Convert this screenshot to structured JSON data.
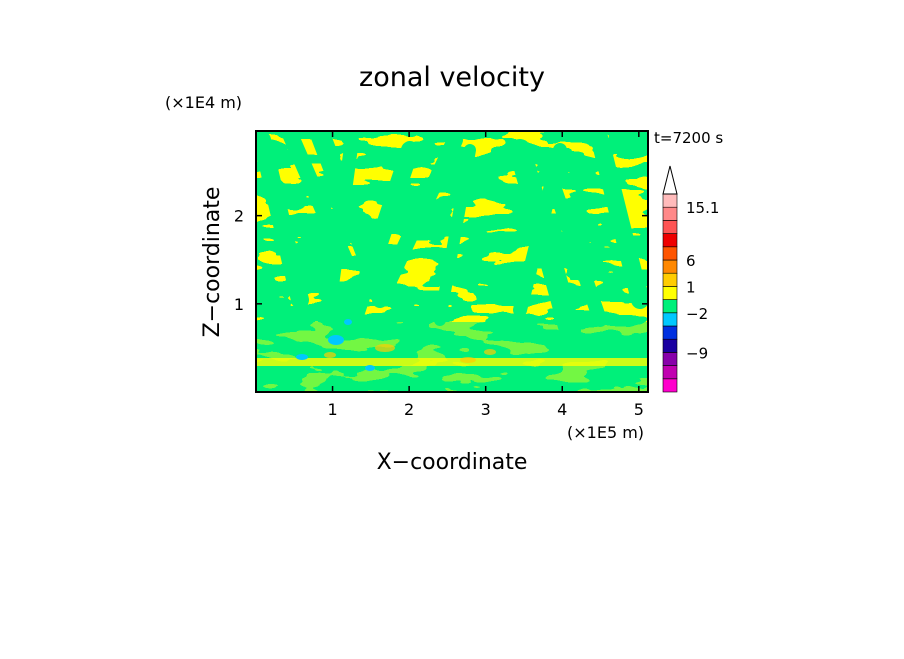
{
  "chart_data": {
    "type": "heatmap",
    "title": "zonal velocity",
    "xlabel": "X−coordinate",
    "ylabel": "Z−coordinate",
    "x_scale_label": "(×1E5 m)",
    "y_scale_label": "(×1E4 m)",
    "time_label": "t=7200 s",
    "xlim": [
      0,
      5.12
    ],
    "ylim": [
      0,
      2.96
    ],
    "x_ticks": [
      1,
      2,
      3,
      4,
      5
    ],
    "y_ticks": [
      1,
      2
    ],
    "x_tick_labels": [
      "1",
      "2",
      "3",
      "4",
      "5"
    ],
    "y_tick_labels": [
      "1",
      "2"
    ],
    "colorbar": {
      "levels_bottom_to_top": [
        {
          "color": "#ff00cc"
        },
        {
          "color": "#c000b0"
        },
        {
          "color": "#8800aa"
        },
        {
          "color": "#1a00a0"
        },
        {
          "color": "#0030e0"
        },
        {
          "color": "#00c8ff"
        },
        {
          "color": "#00f07a"
        },
        {
          "color": "#ffff00"
        },
        {
          "color": "#ffcc00"
        },
        {
          "color": "#ff8800"
        },
        {
          "color": "#ff5500"
        },
        {
          "color": "#ee0000"
        },
        {
          "color": "#ff5555"
        },
        {
          "color": "#ff8888"
        },
        {
          "color": "#ffbbbb"
        }
      ],
      "labels": [
        {
          "value": -9,
          "text": "−9"
        },
        {
          "value": -2,
          "text": "−2"
        },
        {
          "value": 1,
          "text": "1"
        },
        {
          "value": 6,
          "text": "6"
        },
        {
          "value": 15.1,
          "text": "15.1"
        }
      ],
      "extend": "max"
    },
    "dominant_colors": {
      "green": "#00f07a",
      "yellow": "#ffff00",
      "cyan": "#00c8ff",
      "orange": "#ffcc00"
    }
  }
}
